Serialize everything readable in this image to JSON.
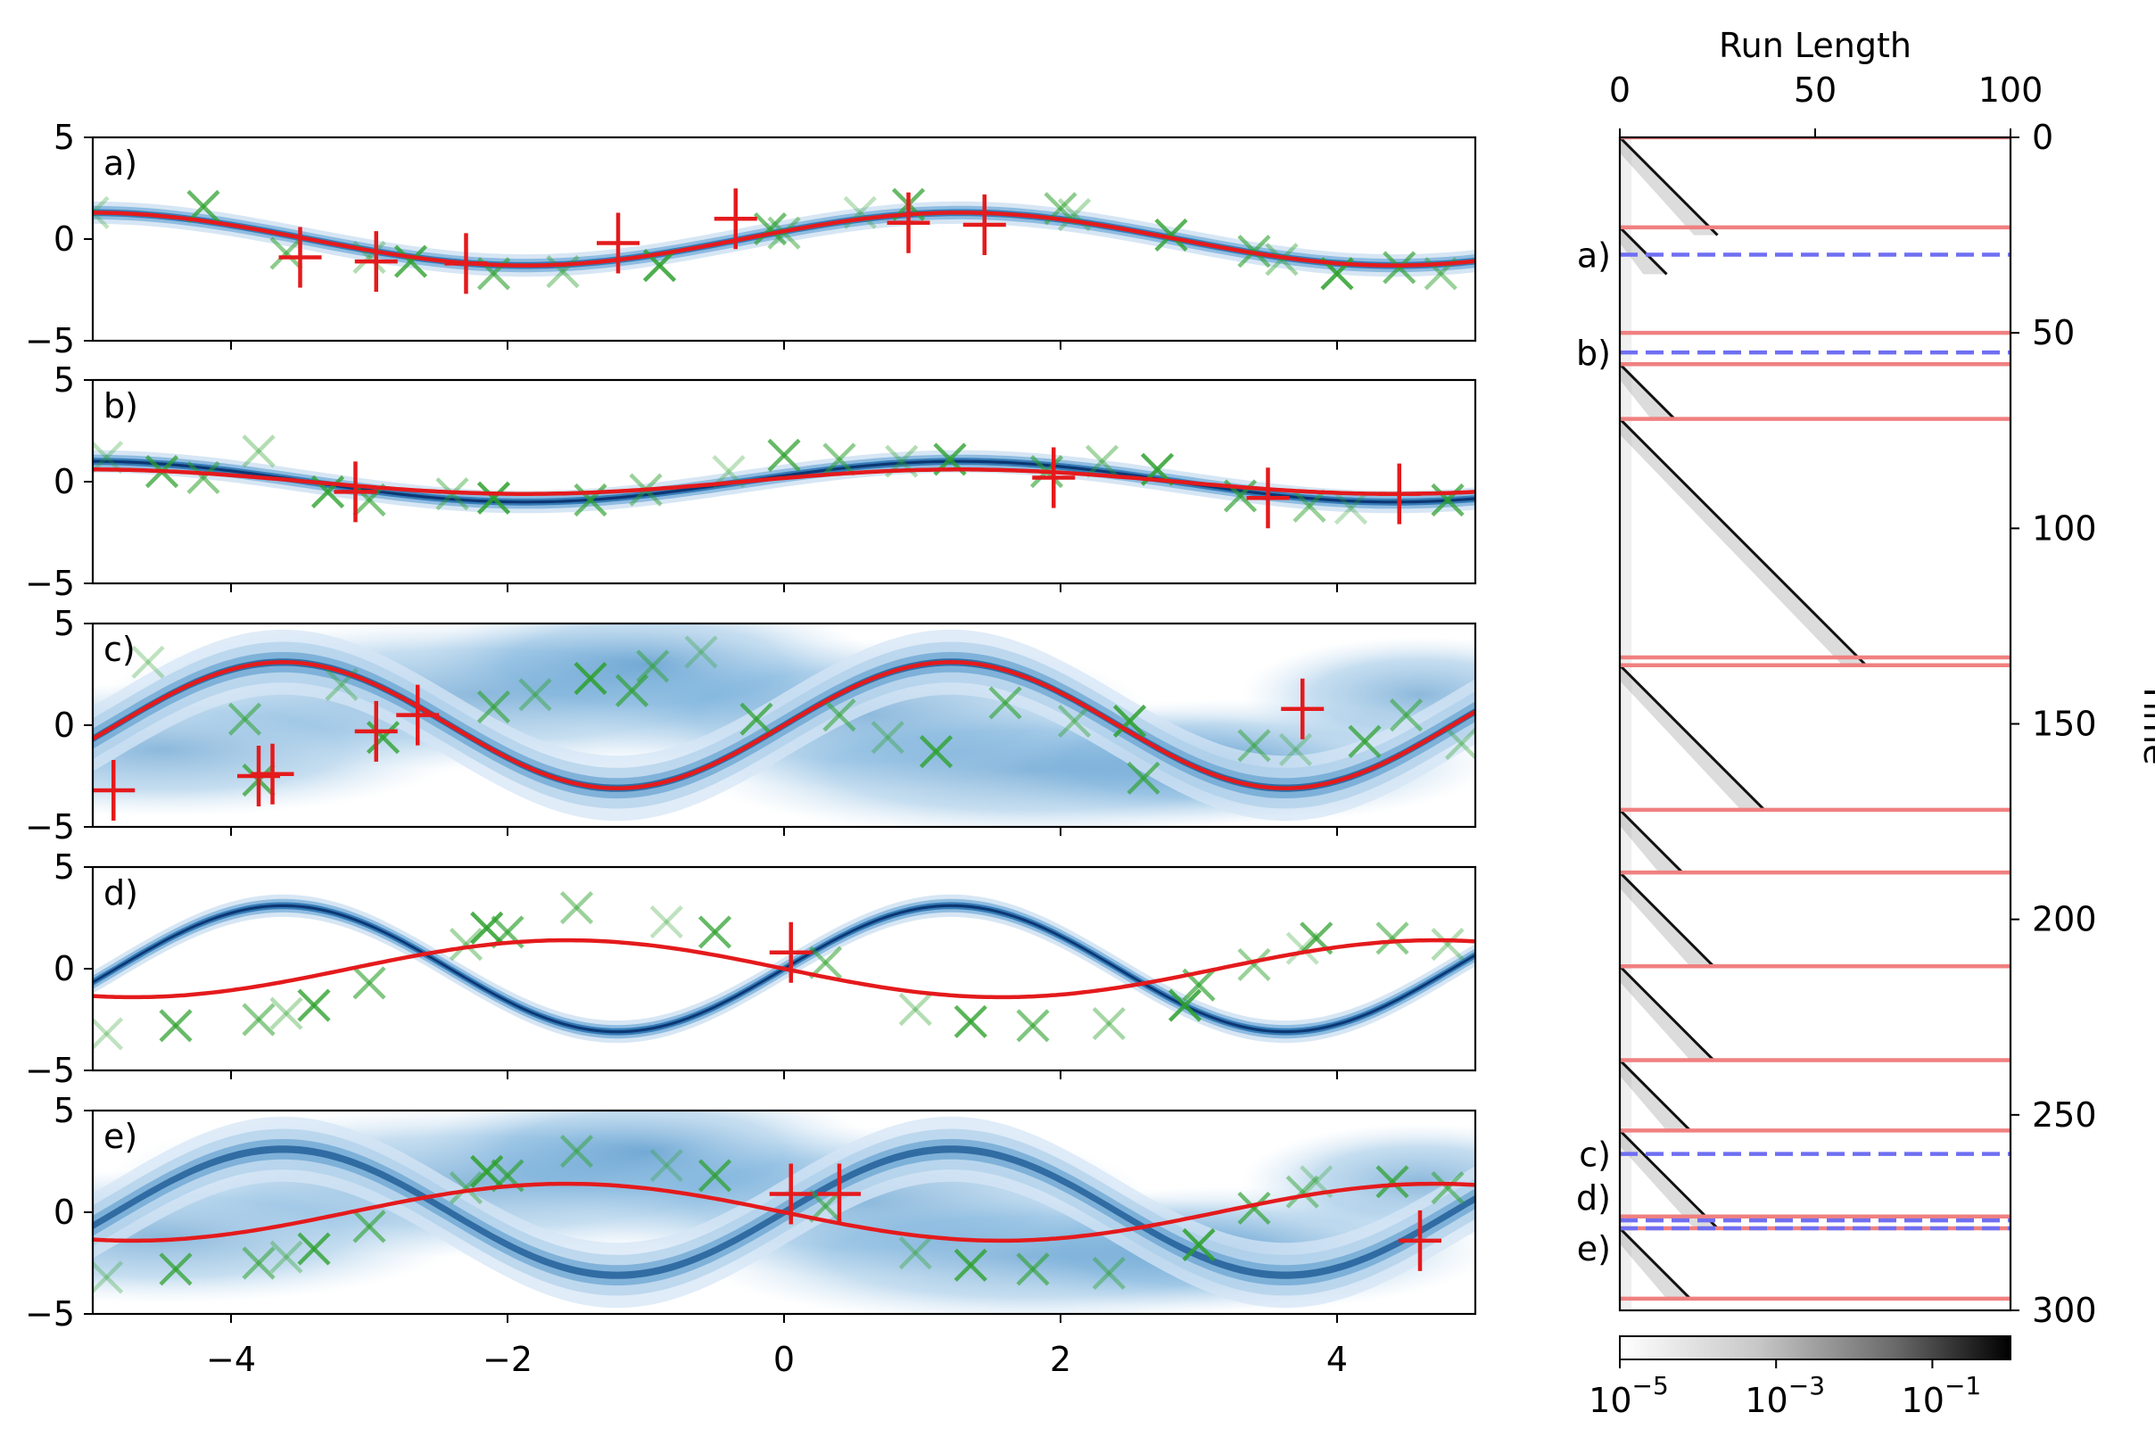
{
  "chart_data": [
    {
      "type": "line",
      "panels": [
        {
          "label": "a)",
          "mean_curve": {
            "amplitude": 1.3,
            "frequency": 1.0,
            "phase": 0.3,
            "offset": 0.0
          },
          "red_curve": {
            "amplitude": 1.3,
            "frequency": 1.0,
            "phase": 0.3,
            "offset": 0.0
          },
          "band": "narrow",
          "observations_plus": [
            [
              -3.5,
              -0.9
            ],
            [
              -2.95,
              -1.1
            ],
            [
              -2.3,
              -1.2
            ],
            [
              -1.2,
              -0.2
            ],
            [
              -0.35,
              1.0
            ],
            [
              0.9,
              0.8
            ],
            [
              1.45,
              0.7
            ]
          ],
          "samples_x": [
            [
              -5.0,
              1.3
            ],
            [
              -4.2,
              1.6
            ],
            [
              -3.6,
              -0.7
            ],
            [
              -3.0,
              -0.9
            ],
            [
              -2.7,
              -1.1
            ],
            [
              -2.1,
              -1.7
            ],
            [
              -1.6,
              -1.6
            ],
            [
              -0.9,
              -1.3
            ],
            [
              -0.1,
              0.5
            ],
            [
              0.0,
              0.3
            ],
            [
              0.55,
              1.3
            ],
            [
              0.9,
              1.7
            ],
            [
              2.0,
              1.5
            ],
            [
              2.1,
              1.2
            ],
            [
              2.8,
              0.2
            ],
            [
              3.4,
              -0.6
            ],
            [
              3.6,
              -1.0
            ],
            [
              4.0,
              -1.7
            ],
            [
              4.45,
              -1.4
            ],
            [
              4.75,
              -1.7
            ]
          ]
        },
        {
          "label": "b)",
          "mean_curve": {
            "amplitude": 1.0,
            "frequency": 1.0,
            "phase": 0.3,
            "offset": 0.0
          },
          "red_curve": {
            "amplitude": 0.6,
            "frequency": 1.0,
            "phase": 0.3,
            "offset": 0.0
          },
          "band": "narrow",
          "observations_plus": [
            [
              -3.1,
              -0.5
            ],
            [
              1.95,
              0.2
            ],
            [
              3.5,
              -0.8
            ],
            [
              4.45,
              -0.6
            ]
          ],
          "samples_x": [
            [
              -4.9,
              1.2
            ],
            [
              -4.5,
              0.5
            ],
            [
              -4.2,
              0.2
            ],
            [
              -3.8,
              1.5
            ],
            [
              -3.3,
              -0.5
            ],
            [
              -3.0,
              -0.9
            ],
            [
              -2.4,
              -0.6
            ],
            [
              -2.1,
              -0.8
            ],
            [
              -1.4,
              -0.9
            ],
            [
              -1.0,
              -0.4
            ],
            [
              -0.4,
              0.5
            ],
            [
              0.0,
              1.3
            ],
            [
              0.4,
              1.1
            ],
            [
              0.85,
              1.0
            ],
            [
              1.2,
              1.1
            ],
            [
              1.9,
              0.5
            ],
            [
              2.3,
              1.0
            ],
            [
              2.7,
              0.6
            ],
            [
              3.3,
              -0.7
            ],
            [
              3.8,
              -1.2
            ],
            [
              4.1,
              -1.3
            ],
            [
              4.8,
              -0.9
            ]
          ]
        },
        {
          "label": "c)",
          "mean_curve": {
            "amplitude": 3.1,
            "frequency": 1.3,
            "phase": 0.0,
            "offset": 0.0
          },
          "red_curve": {
            "amplitude": 3.1,
            "frequency": 1.3,
            "phase": 0.0,
            "offset": 0.0
          },
          "band": "wide",
          "observations_plus": [
            [
              -4.85,
              -3.2
            ],
            [
              -3.8,
              -2.5
            ],
            [
              -3.7,
              -2.4
            ],
            [
              -2.95,
              -0.3
            ],
            [
              -2.65,
              0.5
            ],
            [
              3.75,
              0.8
            ]
          ],
          "samples_x": [
            [
              -4.6,
              3.1
            ],
            [
              -3.8,
              -2.7
            ],
            [
              -3.9,
              0.3
            ],
            [
              -3.2,
              2.0
            ],
            [
              -2.9,
              -0.6
            ],
            [
              -2.1,
              0.9
            ],
            [
              -1.8,
              1.5
            ],
            [
              -1.4,
              2.3
            ],
            [
              -1.1,
              1.7
            ],
            [
              -0.95,
              2.9
            ],
            [
              -0.6,
              3.6
            ],
            [
              -0.2,
              0.3
            ],
            [
              0.4,
              0.5
            ],
            [
              0.75,
              -0.6
            ],
            [
              1.1,
              -1.3
            ],
            [
              1.6,
              1.1
            ],
            [
              2.1,
              0.2
            ],
            [
              2.5,
              0.2
            ],
            [
              2.6,
              -2.6
            ],
            [
              3.4,
              -1.0
            ],
            [
              3.7,
              -1.2
            ],
            [
              4.2,
              -0.8
            ],
            [
              4.5,
              0.5
            ],
            [
              4.9,
              -0.9
            ]
          ]
        },
        {
          "label": "d)",
          "mean_curve": {
            "amplitude": 3.1,
            "frequency": 1.3,
            "phase": 0.0,
            "offset": 0.0
          },
          "red_curve": {
            "amplitude": 1.4,
            "frequency": -1.0,
            "phase": 0.0,
            "offset": 0.0
          },
          "band": "narrow",
          "observations_plus": [
            [
              0.05,
              0.8
            ]
          ],
          "samples_x": [
            [
              -4.9,
              -3.2
            ],
            [
              -4.4,
              -2.8
            ],
            [
              -3.8,
              -2.5
            ],
            [
              -3.6,
              -2.2
            ],
            [
              -3.4,
              -1.8
            ],
            [
              -3.0,
              -0.7
            ],
            [
              -2.3,
              1.2
            ],
            [
              -2.15,
              2.0
            ],
            [
              -2.0,
              1.8
            ],
            [
              -1.5,
              3.0
            ],
            [
              -0.85,
              2.3
            ],
            [
              -0.5,
              1.8
            ],
            [
              0.3,
              0.3
            ],
            [
              0.95,
              -2.0
            ],
            [
              1.35,
              -2.6
            ],
            [
              1.8,
              -2.8
            ],
            [
              2.35,
              -2.7
            ],
            [
              2.9,
              -1.8
            ],
            [
              3.0,
              -0.8
            ],
            [
              3.4,
              0.2
            ],
            [
              3.75,
              1.0
            ],
            [
              3.85,
              1.5
            ],
            [
              4.4,
              1.5
            ],
            [
              4.8,
              1.2
            ]
          ]
        },
        {
          "label": "e)",
          "mean_curve": {
            "amplitude": 3.1,
            "frequency": 1.3,
            "phase": 0.0,
            "offset": 0.0
          },
          "red_curve": {
            "amplitude": 1.4,
            "frequency": -1.0,
            "phase": 0.0,
            "offset": 0.0
          },
          "band": "wide",
          "observations_plus": [
            [
              0.05,
              0.9
            ],
            [
              0.4,
              0.9
            ],
            [
              4.6,
              -1.4
            ]
          ],
          "samples_x": [
            [
              -4.9,
              -3.2
            ],
            [
              -4.4,
              -2.8
            ],
            [
              -3.8,
              -2.5
            ],
            [
              -3.6,
              -2.2
            ],
            [
              -3.4,
              -1.8
            ],
            [
              -3.0,
              -0.7
            ],
            [
              -2.3,
              1.2
            ],
            [
              -2.15,
              2.0
            ],
            [
              -2.0,
              1.8
            ],
            [
              -1.5,
              3.0
            ],
            [
              -0.85,
              2.3
            ],
            [
              -0.5,
              1.8
            ],
            [
              0.3,
              0.3
            ],
            [
              0.95,
              -2.0
            ],
            [
              1.35,
              -2.6
            ],
            [
              1.8,
              -2.8
            ],
            [
              2.35,
              -3.0
            ],
            [
              3.0,
              -1.6
            ],
            [
              3.4,
              0.2
            ],
            [
              3.75,
              1.0
            ],
            [
              3.85,
              1.5
            ],
            [
              4.4,
              1.5
            ],
            [
              4.8,
              1.2
            ]
          ]
        }
      ],
      "xlim": [
        -5,
        5
      ],
      "ylim": [
        -5,
        5
      ],
      "xticks": [
        -4,
        -2,
        0,
        2,
        4
      ],
      "xtick_labels": [
        "−4",
        "−2",
        "0",
        "2",
        "4"
      ],
      "yticks": [
        5,
        0,
        -5
      ],
      "ytick_labels": [
        "5",
        "0",
        "−5"
      ]
    },
    {
      "type": "heatmap",
      "xlabel": "Run Length",
      "ylabel": "Time",
      "xlim": [
        0,
        100
      ],
      "ylim": [
        0,
        300
      ],
      "xticks": [
        0,
        50,
        100
      ],
      "xtick_labels": [
        "0",
        "50",
        "100"
      ],
      "yticks": [
        0,
        50,
        100,
        150,
        200,
        250,
        300
      ],
      "ytick_labels": [
        "0",
        "50",
        "100",
        "150",
        "200",
        "250",
        "300"
      ],
      "changepoints": [
        0,
        23,
        50,
        58,
        72,
        133,
        135,
        172,
        188,
        212,
        236,
        254,
        276,
        279,
        297
      ],
      "markers": [
        {
          "label": "a)",
          "time": 30
        },
        {
          "label": "b)",
          "time": 55
        },
        {
          "label": "c)",
          "time": 260
        },
        {
          "label": "d)",
          "time": 277
        },
        {
          "label": "e)",
          "time": 279
        }
      ],
      "segments": [
        [
          0,
          25
        ],
        [
          23,
          35
        ],
        [
          58,
          72
        ],
        [
          72,
          135
        ],
        [
          135,
          172
        ],
        [
          172,
          188
        ],
        [
          188,
          212
        ],
        [
          212,
          236
        ],
        [
          236,
          254
        ],
        [
          254,
          279
        ],
        [
          279,
          297
        ]
      ],
      "colorbar": {
        "min_exponent": -5,
        "max_exponent": 0,
        "tick_labels": [
          "10",
          "10",
          "10"
        ],
        "tick_exponents": [
          "−5",
          "−3",
          "−1"
        ]
      }
    }
  ]
}
